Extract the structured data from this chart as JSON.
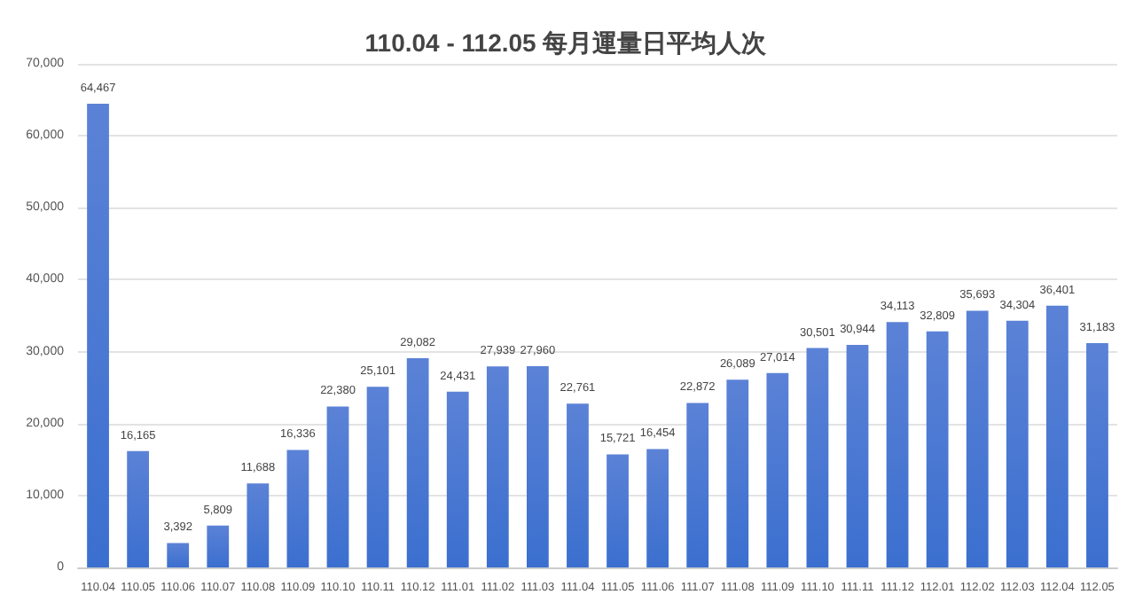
{
  "chart_data": {
    "type": "bar",
    "title": "110.04 - 112.05 每月運量日平均人次",
    "categories": [
      "110.04",
      "110.05",
      "110.06",
      "110.07",
      "110.08",
      "110.09",
      "110.10",
      "110.11",
      "110.12",
      "111.01",
      "111.02",
      "111.03",
      "111.04",
      "111.05",
      "111.06",
      "111.07",
      "111.08",
      "111.09",
      "111.10",
      "111.11",
      "111.12",
      "112.01",
      "112.02",
      "112.03",
      "112.04",
      "112.05"
    ],
    "values": [
      64467,
      16165,
      3392,
      5809,
      11688,
      16336,
      22380,
      25101,
      29082,
      24431,
      27939,
      27960,
      22761,
      15721,
      16454,
      22872,
      26089,
      27014,
      30501,
      30944,
      34113,
      32809,
      35693,
      34304,
      36401,
      31183
    ],
    "value_labels": [
      "64,467",
      "16,165",
      "3,392",
      "5,809",
      "11,688",
      "16,336",
      "22,380",
      "25,101",
      "29,082",
      "24,431",
      "27,939",
      "27,960",
      "22,761",
      "15,721",
      "16,454",
      "22,872",
      "26,089",
      "27,014",
      "30,501",
      "30,944",
      "34,113",
      "32,809",
      "35,693",
      "34,304",
      "36,401",
      "31,183"
    ],
    "color": "#3b6fcf",
    "ylim": [
      0,
      70000
    ],
    "yticks": [
      0,
      {
        "value": 10000,
        "label": "10,000"
      },
      {
        "value": 20000,
        "label": "20,000"
      },
      {
        "value": 30000,
        "label": "30,000"
      },
      {
        "value": 40000,
        "label": "40,000"
      },
      {
        "value": 50000,
        "label": "50,000"
      },
      {
        "value": 60000,
        "label": "60,000"
      },
      {
        "value": 70000,
        "label": "70,000"
      }
    ],
    "grid": "y"
  }
}
